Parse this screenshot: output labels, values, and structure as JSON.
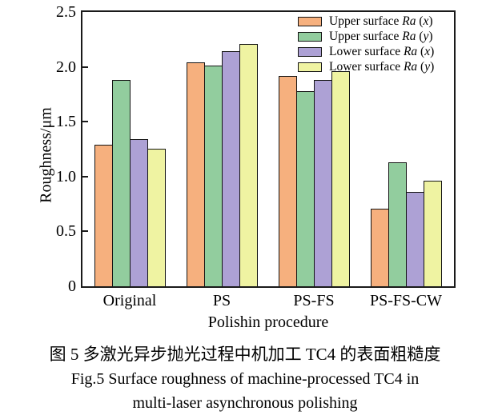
{
  "chart_data": {
    "type": "bar",
    "categories": [
      "Original",
      "PS",
      "PS-FS",
      "PS-FS-CW"
    ],
    "series": [
      {
        "name": "Upper surface Ra (x)",
        "color": "#F6B07E",
        "values": [
          1.29,
          2.04,
          1.92,
          0.71
        ]
      },
      {
        "name": "Upper surface Ra (y)",
        "color": "#92CD9E",
        "values": [
          1.88,
          2.01,
          1.78,
          1.13
        ]
      },
      {
        "name": "Lower surface Ra (x)",
        "color": "#ADA1D5",
        "values": [
          1.34,
          2.14,
          1.88,
          0.86
        ]
      },
      {
        "name": "Lower surface Ra (y)",
        "color": "#EFF3A2",
        "values": [
          1.25,
          2.21,
          1.96,
          0.96
        ]
      }
    ],
    "title": "",
    "xlabel": "Polishin procedure",
    "ylabel": "Roughness/μm",
    "ylim": [
      0,
      2.5
    ],
    "yticks": [
      0,
      0.5,
      1.0,
      1.5,
      2.0,
      2.5
    ],
    "ytick_labels": [
      "0",
      "0.5",
      "1.0",
      "1.5",
      "2.0",
      "2.5"
    ],
    "legend_position": "top-right",
    "grid": false,
    "bar_outline_color": "#141414",
    "axis_color": "#1a1a1a"
  },
  "caption": {
    "line1_zh": "图 5  多激光异步抛光过程中机加工 TC4 的表面粗糙度",
    "line2_en": "Fig.5 Surface roughness of machine-processed TC4 in",
    "line3_en": "multi-laser asynchronous polishing"
  }
}
